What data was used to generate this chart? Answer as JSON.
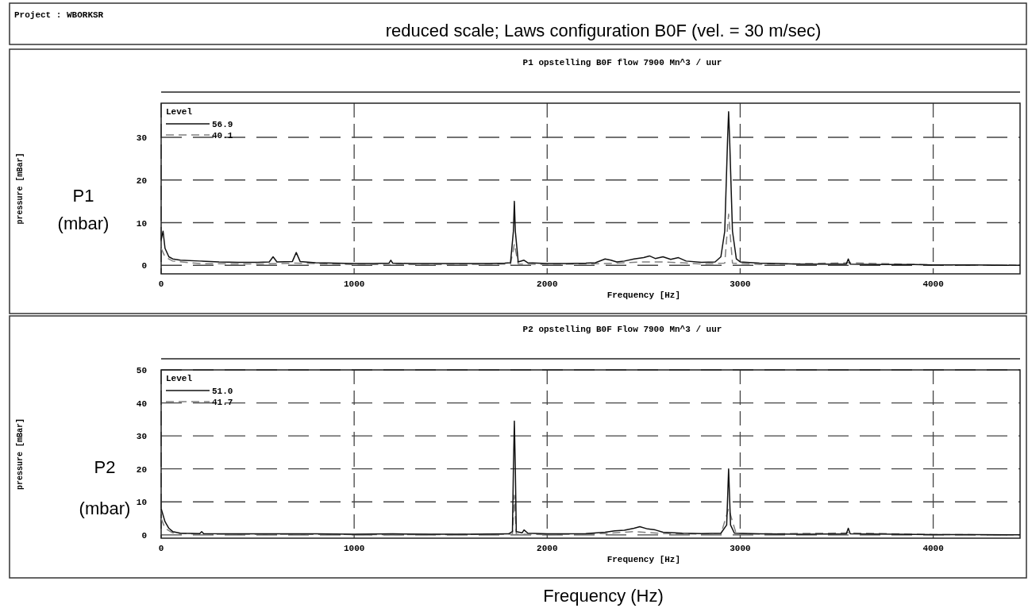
{
  "chart_data": [
    {
      "type": "line",
      "title": "P1 opstelling B0F flow 7900 Mn^3 / uur",
      "xlabel": "Frequency [Hz]",
      "ylabel": "pressure [mBar]",
      "legend_title": "Level",
      "legend": "top left",
      "grid": true,
      "annotations": [
        "Project : WBORKSR",
        "reduced scale; Laws configuration B0F (vel. = 30 m/sec)",
        "P1",
        "(mbar)"
      ],
      "xlim": [
        0,
        4450
      ],
      "xticks": [
        0,
        1000,
        2000,
        3000,
        4000
      ],
      "ylim": [
        -2,
        38
      ],
      "yticks": [
        0,
        10,
        20,
        30
      ],
      "series": [
        {
          "name": "56.9",
          "color": "#111111",
          "line_style": "solid",
          "x": [
            0,
            10,
            20,
            40,
            60,
            100,
            200,
            300,
            400,
            500,
            560,
            580,
            600,
            680,
            700,
            720,
            800,
            900,
            1000,
            1100,
            1180,
            1190,
            1200,
            1300,
            1400,
            1500,
            1600,
            1700,
            1780,
            1810,
            1825,
            1830,
            1835,
            1850,
            1880,
            1900,
            2000,
            2100,
            2200,
            2250,
            2300,
            2330,
            2360,
            2400,
            2450,
            2500,
            2530,
            2560,
            2600,
            2640,
            2680,
            2720,
            2800,
            2870,
            2900,
            2920,
            2935,
            2940,
            2945,
            2960,
            2980,
            3000,
            3100,
            3200,
            3300,
            3400,
            3500,
            3550,
            3560,
            3570,
            3700,
            3800,
            3900,
            4000,
            4200,
            4450
          ],
          "values": [
            6,
            8,
            4,
            2,
            1.5,
            1.2,
            1,
            0.8,
            0.7,
            0.7,
            0.8,
            2,
            0.8,
            0.9,
            3,
            0.9,
            0.6,
            0.5,
            0.4,
            0.4,
            0.5,
            1.2,
            0.5,
            0.4,
            0.4,
            0.4,
            0.4,
            0.4,
            0.5,
            0.6,
            8,
            15,
            8,
            0.8,
            1.2,
            0.6,
            0.4,
            0.4,
            0.5,
            0.6,
            1.5,
            1.2,
            0.8,
            1,
            1.5,
            1.8,
            2.2,
            1.6,
            2,
            1.4,
            1.8,
            1,
            0.7,
            0.8,
            2,
            8,
            30,
            36,
            30,
            8,
            1.5,
            0.8,
            0.5,
            0.4,
            0.3,
            0.3,
            0.3,
            0.3,
            1.5,
            0.3,
            0.2,
            0.2,
            0.2,
            0.1,
            0.1,
            0
          ]
        },
        {
          "name": "40.1",
          "color": "#808080",
          "line_style": "dashed",
          "x": [
            0,
            20,
            60,
            200,
            500,
            700,
            1000,
            1500,
            1810,
            1830,
            1850,
            2000,
            2300,
            2400,
            2500,
            2600,
            2700,
            2800,
            2920,
            2940,
            2960,
            3100,
            3560,
            4000,
            4450
          ],
          "values": [
            4,
            2,
            1,
            0.4,
            0.3,
            0.5,
            0.2,
            0.2,
            0.3,
            5,
            0.3,
            0.2,
            0.4,
            0.6,
            0.8,
            0.8,
            0.6,
            0.3,
            0.5,
            12,
            0.5,
            0.2,
            0.6,
            0.1,
            0
          ]
        }
      ]
    },
    {
      "type": "line",
      "title": "P2 opstelling B0F Flow 7900 Mn^3 / uur",
      "xlabel": "Frequency [Hz]",
      "ylabel": "pressure [mBar]",
      "legend_title": "Level",
      "legend": "top left",
      "grid": true,
      "annotations": [
        "P2",
        "(mbar)",
        "Frequency (Hz)"
      ],
      "xlim": [
        0,
        4450
      ],
      "xticks": [
        0,
        1000,
        2000,
        3000,
        4000
      ],
      "ylim": [
        -1,
        50
      ],
      "yticks": [
        0,
        10,
        20,
        30,
        40,
        50
      ],
      "series": [
        {
          "name": "51.0",
          "color": "#111111",
          "line_style": "solid",
          "x": [
            0,
            10,
            20,
            40,
            60,
            100,
            200,
            210,
            220,
            400,
            600,
            800,
            1000,
            1200,
            1400,
            1600,
            1800,
            1820,
            1825,
            1830,
            1835,
            1840,
            1870,
            1880,
            1900,
            2000,
            2100,
            2200,
            2300,
            2350,
            2400,
            2450,
            2480,
            2520,
            2560,
            2600,
            2700,
            2800,
            2900,
            2930,
            2940,
            2950,
            2970,
            3100,
            3300,
            3550,
            3560,
            3570,
            3800,
            4000,
            4200,
            4450
          ],
          "values": [
            8,
            6,
            4,
            2,
            1,
            0.5,
            0.4,
            1,
            0.4,
            0.3,
            0.3,
            0.3,
            0.2,
            0.3,
            0.2,
            0.2,
            0.3,
            1,
            20,
            34.5,
            20,
            1,
            0.6,
            1.5,
            0.5,
            0.3,
            0.3,
            0.4,
            0.8,
            1.2,
            1.4,
            2,
            2.5,
            1.8,
            1.5,
            0.8,
            0.5,
            0.4,
            0.5,
            3,
            20,
            3,
            0.5,
            0.3,
            0.2,
            0.3,
            2,
            0.3,
            0.2,
            0.1,
            0.1,
            0
          ]
        },
        {
          "name": "41.7",
          "color": "#808080",
          "line_style": "dashed",
          "x": [
            0,
            20,
            60,
            200,
            600,
            1000,
            1500,
            1820,
            1830,
            1840,
            2000,
            2300,
            2450,
            2600,
            2900,
            2940,
            2980,
            3560,
            4000,
            4450
          ],
          "values": [
            5,
            2,
            0.6,
            0.2,
            0.2,
            0.1,
            0.1,
            0.2,
            12,
            0.2,
            0.1,
            0.4,
            1,
            0.4,
            0.2,
            8,
            0.2,
            0.6,
            0.1,
            0
          ]
        }
      ]
    }
  ]
}
